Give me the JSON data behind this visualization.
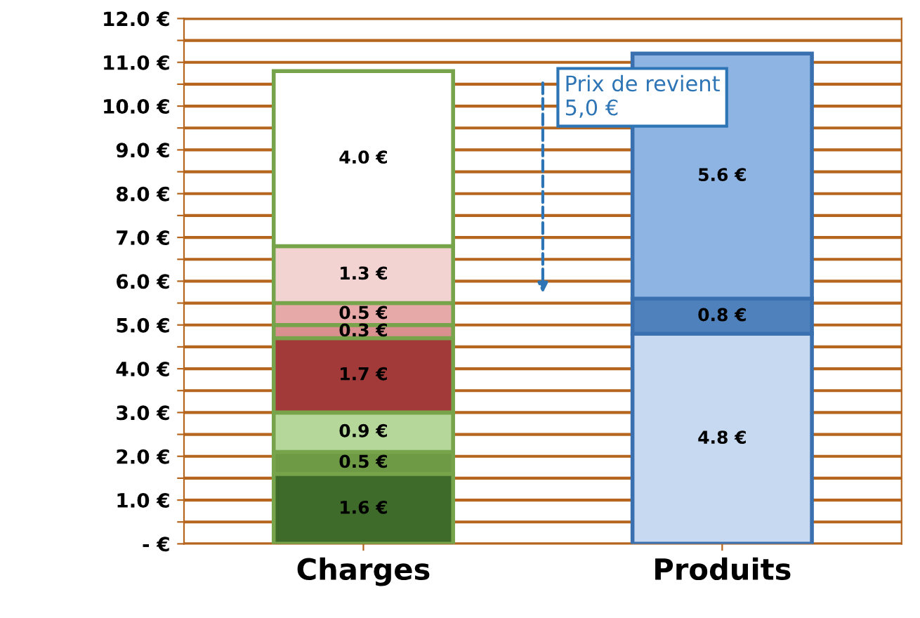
{
  "chart_data": {
    "type": "bar",
    "stacked": true,
    "categories": [
      "Charges",
      "Produits"
    ],
    "series": [
      {
        "color": "#3f6b2a",
        "values": [
          1.6,
          null
        ],
        "value_labels": [
          "1.6 €",
          null
        ]
      },
      {
        "color": "#6e9a45",
        "values": [
          0.5,
          null
        ],
        "value_labels": [
          "0.5 €",
          null
        ]
      },
      {
        "color": "#b5d79a",
        "values": [
          0.9,
          null
        ],
        "value_labels": [
          "0.9 €",
          null
        ]
      },
      {
        "color": "#a33a3a",
        "values": [
          1.7,
          null
        ],
        "value_labels": [
          "1.7 €",
          null
        ]
      },
      {
        "color": "#d9908f",
        "values": [
          0.3,
          null
        ],
        "value_labels": [
          "0.3 €",
          null
        ]
      },
      {
        "color": "#e6a9a8",
        "values": [
          0.5,
          null
        ],
        "value_labels": [
          "0.5 €",
          null
        ]
      },
      {
        "color": "#f2d3d2",
        "values": [
          1.3,
          null
        ],
        "value_labels": [
          "1.3 €",
          null
        ]
      },
      {
        "color": "#ffffff",
        "values": [
          4.0,
          null
        ],
        "value_labels": [
          "4.0 €",
          null
        ]
      },
      {
        "color": "#c6d9f0",
        "values": [
          null,
          4.8
        ],
        "value_labels": [
          null,
          "4.8 €"
        ]
      },
      {
        "color": "#4f81bd",
        "values": [
          null,
          0.8
        ],
        "value_labels": [
          null,
          "0.8 €"
        ]
      },
      {
        "color": "#8db4e2",
        "values": [
          null,
          5.6
        ],
        "value_labels": [
          null,
          "5.6 €"
        ]
      }
    ],
    "ylim": [
      0,
      12
    ],
    "yticks": [
      {
        "value": 0,
        "label": "- €"
      },
      {
        "value": 0.5,
        "label": null
      },
      {
        "value": 1,
        "label": "1.0 €"
      },
      {
        "value": 1.5,
        "label": null
      },
      {
        "value": 2,
        "label": "2.0 €"
      },
      {
        "value": 2.5,
        "label": null
      },
      {
        "value": 3,
        "label": "3.0 €"
      },
      {
        "value": 3.5,
        "label": null
      },
      {
        "value": 4,
        "label": "4.0 €"
      },
      {
        "value": 4.5,
        "label": null
      },
      {
        "value": 5,
        "label": "5.0 €"
      },
      {
        "value": 5.5,
        "label": null
      },
      {
        "value": 6,
        "label": "6.0 €"
      },
      {
        "value": 6.5,
        "label": null
      },
      {
        "value": 7,
        "label": "7.0 €"
      },
      {
        "value": 7.5,
        "label": null
      },
      {
        "value": 8,
        "label": "8.0 €"
      },
      {
        "value": 8.5,
        "label": null
      },
      {
        "value": 9,
        "label": "9.0 €"
      },
      {
        "value": 9.5,
        "label": null
      },
      {
        "value": 10,
        "label": "10.0 €"
      },
      {
        "value": 10.5,
        "label": null
      },
      {
        "value": 11,
        "label": "11.0 €"
      },
      {
        "value": 11.5,
        "label": null
      },
      {
        "value": 12,
        "label": "12.0 €"
      }
    ],
    "grid": "y",
    "annotations": [
      "Prix de revient\n5,0 €"
    ]
  }
}
